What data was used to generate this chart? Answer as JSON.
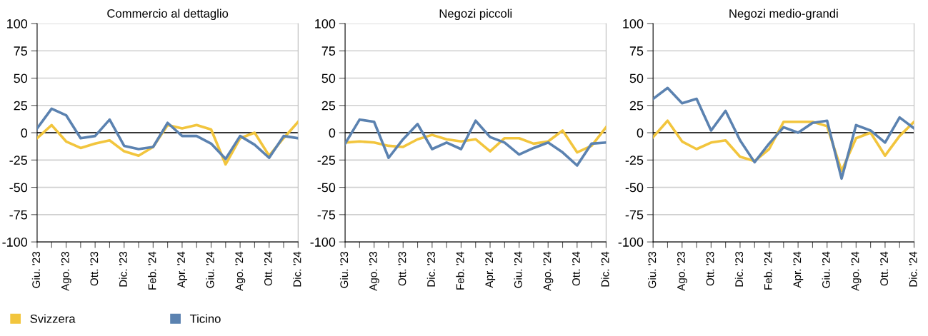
{
  "chart_data": [
    {
      "type": "line",
      "title": "Commercio al dettaglio",
      "categories": [
        "Giu. '23",
        null,
        "Ago. '23",
        null,
        "Ott. '23",
        null,
        "Dic. '23",
        null,
        "Feb. '24",
        null,
        "Apr. '24",
        null,
        "Giu. '24",
        null,
        "Ago. '24",
        null,
        "Ott. '24",
        null,
        "Dic. '24"
      ],
      "ylim": [
        -100,
        100
      ],
      "yticks": [
        -100,
        -75,
        -50,
        -25,
        0,
        25,
        50,
        75,
        100
      ],
      "grid": "y",
      "legend": "bottom left",
      "ref_lines": [
        {
          "axis": "y",
          "value": 0,
          "color": "#000000"
        }
      ],
      "series": [
        {
          "name": "Svizzera",
          "color": "#f2c53d",
          "values": [
            -5,
            7,
            -8,
            -14,
            -10,
            -7,
            -17,
            -21,
            -13,
            7,
            4,
            7,
            3,
            -29,
            -5,
            0,
            -21,
            -5,
            10
          ]
        },
        {
          "name": "Ticino",
          "color": "#5b82b0",
          "values": [
            4,
            22,
            16,
            -5,
            -3,
            12,
            -12,
            -15,
            -13,
            9,
            -3,
            -3,
            -10,
            -24,
            -3,
            -11,
            -23,
            -3,
            -5
          ]
        }
      ]
    },
    {
      "type": "line",
      "title": "Negozi piccoli",
      "categories": [
        "Giu. '23",
        null,
        "Ago. '23",
        null,
        "Ott. '23",
        null,
        "Dic. '23",
        null,
        "Feb. '24",
        null,
        "Apr. '24",
        null,
        "Giu. '24",
        null,
        "Ago. '24",
        null,
        "Ott. '24",
        null,
        "Dic. '24"
      ],
      "ylim": [
        -100,
        100
      ],
      "yticks": [
        -100,
        -75,
        -50,
        -25,
        0,
        25,
        50,
        75,
        100
      ],
      "grid": "y",
      "ref_lines": [
        {
          "axis": "y",
          "value": 0,
          "color": "#000000"
        }
      ],
      "series": [
        {
          "color": "#f2c53d",
          "values": [
            -9,
            -8,
            -9,
            -12,
            -13,
            -6,
            -2,
            -6,
            -8,
            -6,
            -17,
            -5,
            -5,
            -10,
            -8,
            2,
            -18,
            -12,
            5
          ]
        },
        {
          "color": "#5b82b0",
          "values": [
            -10,
            12,
            10,
            -23,
            -6,
            8,
            -15,
            -9,
            -15,
            11,
            -4,
            -9,
            -20,
            -14,
            -9,
            -18,
            -30,
            -10,
            -9
          ]
        }
      ]
    },
    {
      "type": "line",
      "title": "Negozi medio-grandi",
      "categories": [
        "Giu. '23",
        null,
        "Ago. '23",
        null,
        "Ott. '23",
        null,
        "Dic. '23",
        null,
        "Feb. '24",
        null,
        "Apr. '24",
        null,
        "Giu. '24",
        null,
        "Ago. '24",
        null,
        "Ott. '24",
        null,
        "Dic. '24"
      ],
      "ylim": [
        -100,
        100
      ],
      "yticks": [
        -100,
        -75,
        -50,
        -25,
        0,
        25,
        50,
        75,
        100
      ],
      "grid": "y",
      "ref_lines": [
        {
          "axis": "y",
          "value": 0,
          "color": "#000000"
        }
      ],
      "series": [
        {
          "color": "#f2c53d",
          "values": [
            -4,
            11,
            -8,
            -15,
            -9,
            -7,
            -22,
            -26,
            -15,
            10,
            10,
            10,
            6,
            -35,
            -5,
            0,
            -21,
            -3,
            10
          ]
        },
        {
          "color": "#5b82b0",
          "values": [
            31,
            41,
            27,
            31,
            2,
            20,
            -7,
            -27,
            -10,
            5,
            0,
            9,
            11,
            -42,
            7,
            2,
            -9,
            14,
            4
          ]
        }
      ]
    }
  ]
}
